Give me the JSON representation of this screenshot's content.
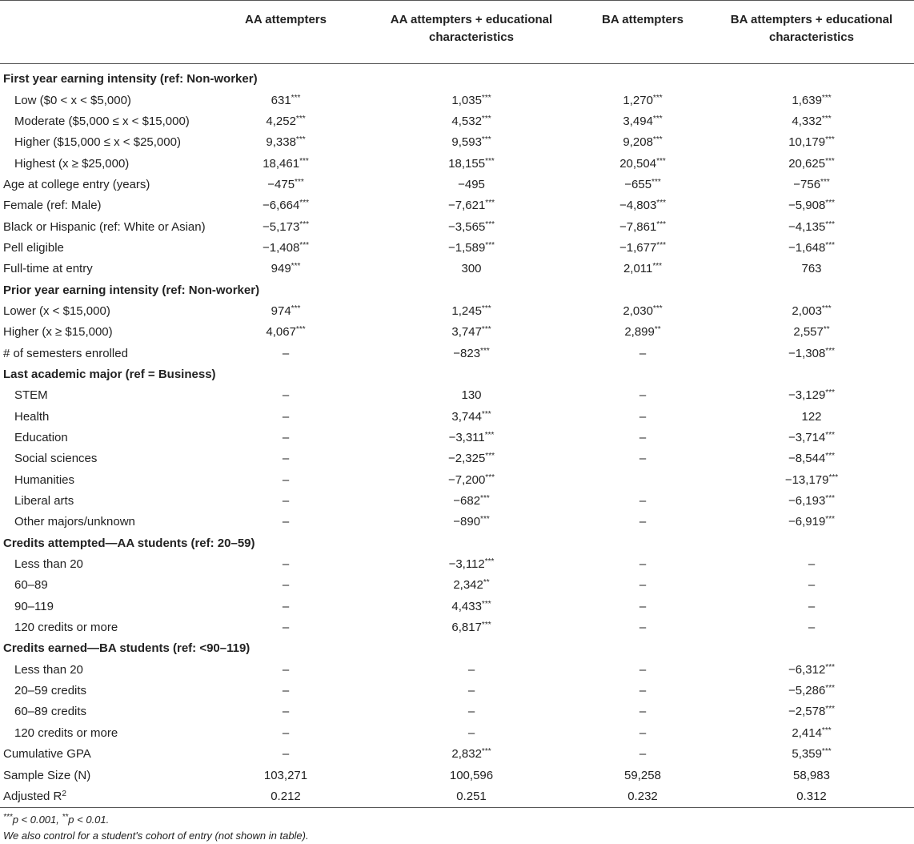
{
  "header": {
    "label_col": "",
    "col1": "AA attempters",
    "col2": "AA attempters + educational characteristics",
    "col3": "BA attempters",
    "col4": "BA attempters + educational characteristics"
  },
  "rows": [
    {
      "label": "First year earning intensity (ref: Non-worker)",
      "type": "section",
      "values": [
        "",
        "",
        "",
        ""
      ]
    },
    {
      "label": "Low ($0 < x < $5,000)",
      "type": "indent",
      "values": [
        "631***",
        "1,035***",
        "1,270***",
        "1,639***"
      ]
    },
    {
      "label": "Moderate ($5,000 ≤ x < $15,000)",
      "type": "indent",
      "values": [
        "4,252***",
        "4,532***",
        "3,494***",
        "4,332***"
      ]
    },
    {
      "label": "Higher ($15,000 ≤ x < $25,000)",
      "type": "indent",
      "values": [
        "9,338***",
        "9,593***",
        "9,208***",
        "10,179***"
      ]
    },
    {
      "label": "Highest (x ≥ $25,000)",
      "type": "indent",
      "values": [
        "18,461***",
        "18,155***",
        "20,504***",
        "20,625***"
      ]
    },
    {
      "label": "Age at college entry (years)",
      "type": "plain",
      "values": [
        "−475***",
        "−495",
        "−655***",
        "−756***"
      ]
    },
    {
      "label": "Female (ref: Male)",
      "type": "plain",
      "values": [
        "−6,664***",
        "−7,621***",
        "−4,803***",
        "−5,908***"
      ]
    },
    {
      "label": "Black or Hispanic (ref: White or Asian)",
      "type": "plain",
      "values": [
        "−5,173***",
        "−3,565***",
        "−7,861***",
        "−4,135***"
      ]
    },
    {
      "label": "Pell eligible",
      "type": "plain",
      "values": [
        "−1,408***",
        "−1,589***",
        "−1,677***",
        "−1,648***"
      ]
    },
    {
      "label": "Full-time at entry",
      "type": "plain",
      "values": [
        "949***",
        "300",
        "2,011***",
        "763"
      ]
    },
    {
      "label": "Prior year earning intensity (ref: Non-worker)",
      "type": "section",
      "values": [
        "",
        "",
        "",
        ""
      ]
    },
    {
      "label": "Lower (x < $15,000)",
      "type": "plain",
      "values": [
        "974***",
        "1,245***",
        "2,030***",
        "2,003***"
      ]
    },
    {
      "label": "Higher (x ≥ $15,000)",
      "type": "plain",
      "values": [
        "4,067***",
        "3,747***",
        "2,899**",
        "2,557**"
      ]
    },
    {
      "label": "# of semesters enrolled",
      "type": "plain",
      "values": [
        "–",
        "−823***",
        "–",
        "−1,308***"
      ]
    },
    {
      "label": "Last academic major (ref = Business)",
      "type": "section",
      "values": [
        "",
        "",
        "",
        ""
      ]
    },
    {
      "label": "STEM",
      "type": "indent",
      "values": [
        "–",
        "130",
        "–",
        "−3,129***"
      ]
    },
    {
      "label": "Health",
      "type": "indent",
      "values": [
        "–",
        "3,744***",
        "–",
        "122"
      ]
    },
    {
      "label": "Education",
      "type": "indent",
      "values": [
        "–",
        "−3,311***",
        "–",
        "−3,714***"
      ]
    },
    {
      "label": "Social sciences",
      "type": "indent",
      "values": [
        "–",
        "−2,325***",
        "–",
        "−8,544***"
      ]
    },
    {
      "label": "Humanities",
      "type": "indent",
      "values": [
        "–",
        "−7,200***",
        "",
        "−13,179***"
      ]
    },
    {
      "label": "Liberal arts",
      "type": "indent",
      "values": [
        "–",
        "−682***",
        "–",
        "−6,193***"
      ]
    },
    {
      "label": "Other majors/unknown",
      "type": "indent",
      "values": [
        "–",
        "−890***",
        "–",
        "−6,919***"
      ]
    },
    {
      "label": "Credits attempted—AA students (ref: 20–59)",
      "type": "section",
      "values": [
        "",
        "",
        "",
        ""
      ]
    },
    {
      "label": "Less than 20",
      "type": "indent",
      "values": [
        "–",
        "−3,112***",
        "–",
        "–"
      ]
    },
    {
      "label": "60–89",
      "type": "indent",
      "values": [
        "–",
        "2,342**",
        "–",
        "–"
      ]
    },
    {
      "label": "90–119",
      "type": "indent",
      "values": [
        "–",
        "4,433***",
        "–",
        "–"
      ]
    },
    {
      "label": "120 credits or more",
      "type": "indent",
      "values": [
        "–",
        "6,817***",
        "–",
        "–"
      ]
    },
    {
      "label": "Credits earned—BA students (ref: <90–119)",
      "type": "section",
      "values": [
        "",
        "",
        "",
        ""
      ]
    },
    {
      "label": "Less than 20",
      "type": "indent",
      "values": [
        "–",
        "–",
        "–",
        "−6,312***"
      ]
    },
    {
      "label": "20–59 credits",
      "type": "indent",
      "values": [
        "–",
        "–",
        "–",
        "−5,286***"
      ]
    },
    {
      "label": "60–89 credits",
      "type": "indent",
      "values": [
        "–",
        "–",
        "–",
        "−2,578***"
      ]
    },
    {
      "label": "120 credits or more",
      "type": "indent",
      "values": [
        "–",
        "–",
        "–",
        "2,414***"
      ]
    },
    {
      "label": "Cumulative GPA",
      "type": "plain",
      "values": [
        "–",
        "2,832***",
        "–",
        "5,359***"
      ]
    },
    {
      "label": "Sample Size (N)",
      "type": "plain",
      "values": [
        "103,271",
        "100,596",
        "59,258",
        "58,983"
      ]
    },
    {
      "label": "Adjusted R",
      "label_sup": "2",
      "type": "plain",
      "values": [
        "0.212",
        "0.251",
        "0.232",
        "0.312"
      ]
    }
  ],
  "notes": {
    "line1": "***p < 0.001, **p < 0.01.",
    "line2": "We also control for a student's cohort of entry (not shown in table)."
  }
}
